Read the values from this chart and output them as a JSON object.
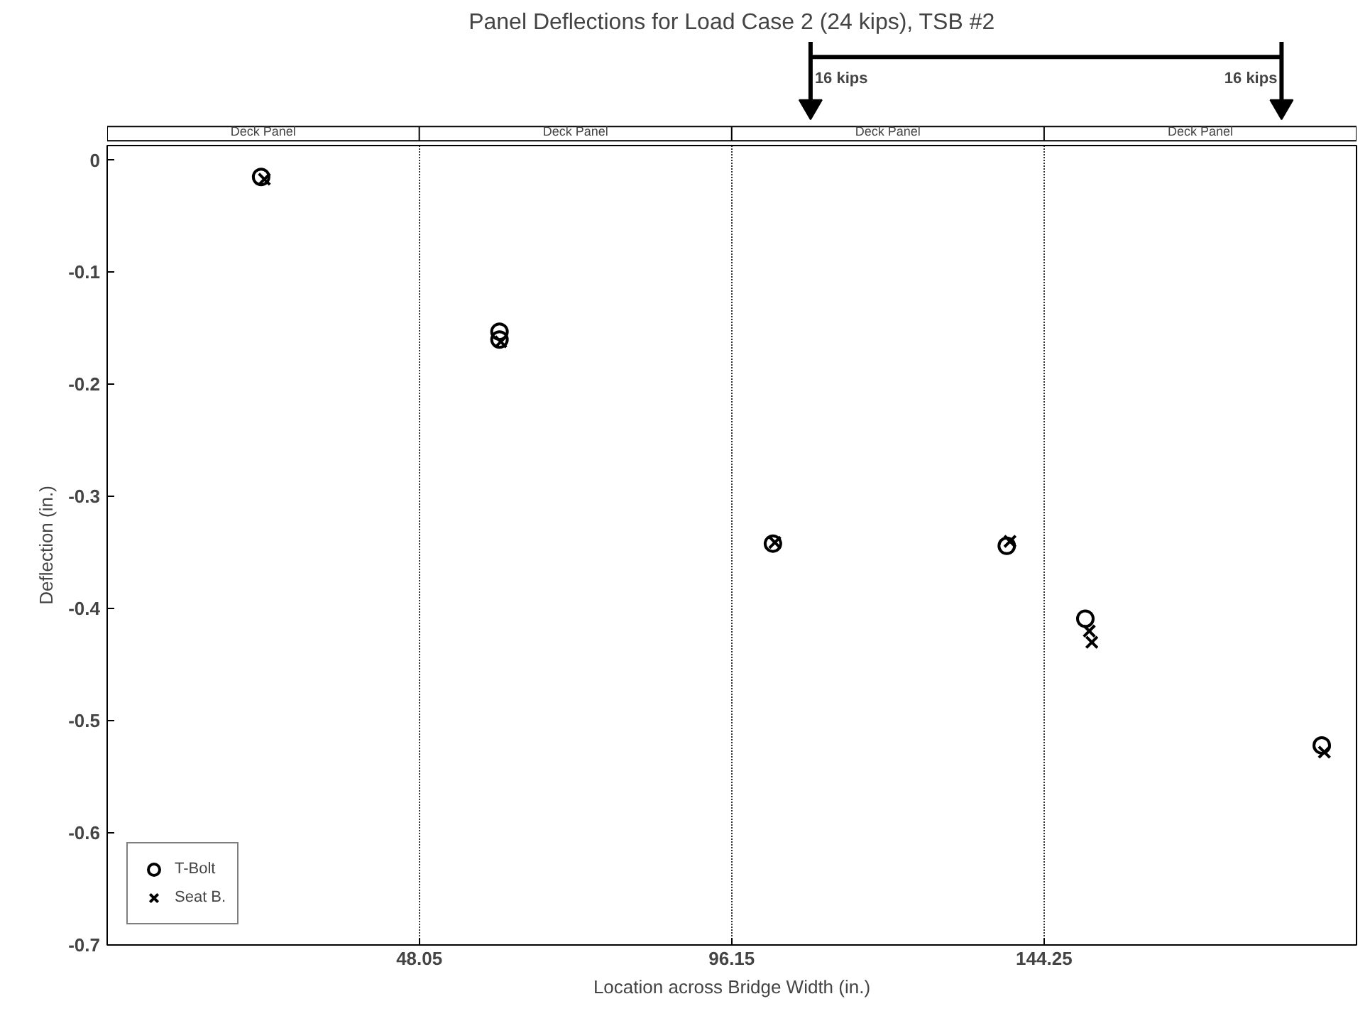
{
  "chart_data": {
    "type": "scatter",
    "title": "Panel Deflections for Load Case 2 (24 kips), TSB #2",
    "xlabel": "Location across Bridge Width (in.)",
    "ylabel": "Deflection (in.)",
    "x": [
      23.7,
      60.4,
      60.4,
      102.5,
      138.5,
      150.6,
      187.0
    ],
    "series": [
      {
        "name": "T-Bolt",
        "color": "#000000",
        "marker": "circle",
        "values": [
          -0.015,
          -0.153,
          -0.16,
          -0.342,
          -0.344,
          -0.409,
          -0.522
        ]
      },
      {
        "name": "Seat B.",
        "color": "#000000",
        "marker": "cross",
        "x": [
          24.2,
          60.6,
          102.8,
          139.0,
          151.2,
          151.6,
          187.4
        ],
        "values": [
          -0.017,
          -0.162,
          -0.341,
          -0.34,
          -0.42,
          -0.43,
          -0.528
        ]
      }
    ],
    "annotations": [
      "Deck Panel",
      "Deck Panel",
      "Deck Panel",
      "Deck Panel",
      "16 kips",
      "16 kips"
    ],
    "xlim": [
      0,
      192.35
    ],
    "ylim": [
      -0.7,
      0.013
    ],
    "xticks": [
      {
        "value": 0,
        "label": null
      },
      48.05,
      96.15,
      144.25
    ],
    "yticks": [
      0,
      -0.1,
      -0.2,
      -0.3,
      -0.4,
      -0.5,
      -0.6,
      -0.7
    ],
    "grid": "x",
    "legend": "bottom left"
  }
}
